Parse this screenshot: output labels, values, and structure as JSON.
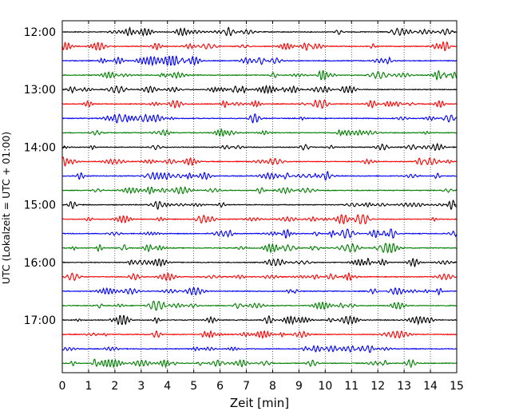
{
  "chart_data": {
    "type": "line",
    "title": "",
    "xlabel": "Zeit  [min]",
    "ylabel": "UTC (Lokalzeit = UTC + 01:00)",
    "xlim": [
      0,
      15
    ],
    "x_ticks": [
      "0",
      "1",
      "2",
      "3",
      "4",
      "5",
      "6",
      "7",
      "8",
      "9",
      "10",
      "11",
      "12",
      "13",
      "14",
      "15"
    ],
    "y_ticks": [
      "12:00",
      "13:00",
      "14:00",
      "15:00",
      "16:00",
      "17:00"
    ],
    "trace_interval_minutes": 15,
    "trace_count": 24,
    "trace_colors": [
      "#000000",
      "#ff0000",
      "#0000ff",
      "#008000"
    ],
    "grid_x": true,
    "grid_style": "dotted",
    "description_note": "helicorder display: each row is a 15-minute seismogram trace starting at 12:00 UTC, colours cycle black, red, blue, green"
  }
}
